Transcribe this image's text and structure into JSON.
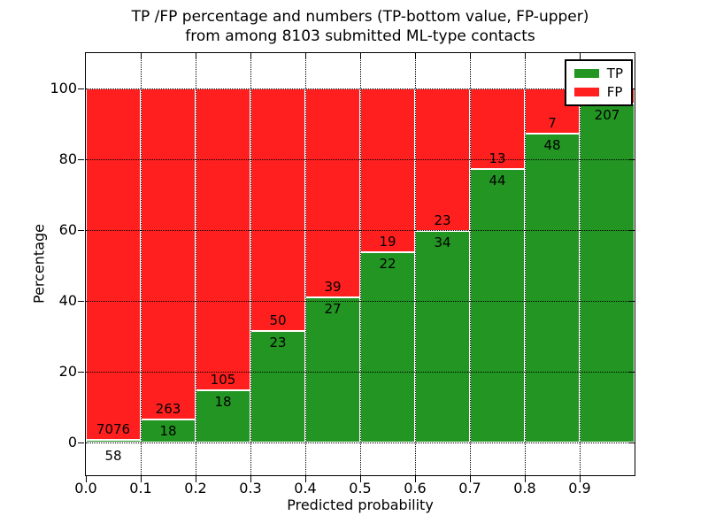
{
  "chart_data": {
    "type": "bar",
    "stacked": true,
    "title_line1": "TP /FP percentage and numbers (TP-bottom value, FP-upper)",
    "title_line2": "from among 8103 submitted ML-type contacts",
    "xlabel": "Predicted probability",
    "ylabel": "Percentage",
    "total_contacts": 8103,
    "x_tick_labels": [
      "0.0",
      "0.1",
      "0.2",
      "0.3",
      "0.4",
      "0.5",
      "0.6",
      "0.7",
      "0.8",
      "0.9"
    ],
    "y_tick_values": [
      0,
      20,
      40,
      60,
      80,
      100
    ],
    "y_tick_labels": [
      "0",
      "20",
      "40",
      "60",
      "80",
      "100"
    ],
    "xlim": [
      0.0,
      1.0
    ],
    "ylim": [
      -9.25,
      110
    ],
    "bin_width": 0.1,
    "grid": true,
    "bins": [
      {
        "x_start": 0.0,
        "tp_count": 58,
        "fp_count": 7076,
        "tp_percent": 0.81,
        "fp_percent": 99.19,
        "tp_label": "58",
        "fp_label": "7076"
      },
      {
        "x_start": 0.1,
        "tp_count": 18,
        "fp_count": 263,
        "tp_percent": 6.41,
        "fp_percent": 93.59,
        "tp_label": "18",
        "fp_label": "263"
      },
      {
        "x_start": 0.2,
        "tp_count": 18,
        "fp_count": 105,
        "tp_percent": 14.63,
        "fp_percent": 85.37,
        "tp_label": "18",
        "fp_label": "105"
      },
      {
        "x_start": 0.3,
        "tp_count": 23,
        "fp_count": 50,
        "tp_percent": 31.51,
        "fp_percent": 68.49,
        "tp_label": "23",
        "fp_label": "50"
      },
      {
        "x_start": 0.4,
        "tp_count": 27,
        "fp_count": 39,
        "tp_percent": 40.91,
        "fp_percent": 59.09,
        "tp_label": "27",
        "fp_label": "39"
      },
      {
        "x_start": 0.5,
        "tp_count": 22,
        "fp_count": 19,
        "tp_percent": 53.66,
        "fp_percent": 46.34,
        "tp_label": "22",
        "fp_label": "19"
      },
      {
        "x_start": 0.6,
        "tp_count": 34,
        "fp_count": 23,
        "tp_percent": 59.65,
        "fp_percent": 40.35,
        "tp_label": "34",
        "fp_label": "23"
      },
      {
        "x_start": 0.7,
        "tp_count": 44,
        "fp_count": 13,
        "tp_percent": 77.19,
        "fp_percent": 22.81,
        "tp_label": "44",
        "fp_label": "13"
      },
      {
        "x_start": 0.8,
        "tp_count": 48,
        "fp_count": 7,
        "tp_percent": 87.27,
        "fp_percent": 12.73,
        "tp_label": "48",
        "fp_label": "7"
      },
      {
        "x_start": 0.9,
        "tp_count": 207,
        "fp_count": null,
        "tp_percent": 95.83,
        "fp_percent": 4.17,
        "tp_label": "207",
        "fp_label": ""
      }
    ],
    "series": [
      {
        "name": "TP",
        "color": "#229522",
        "counts": [
          58,
          18,
          18,
          23,
          27,
          22,
          34,
          44,
          48,
          207
        ]
      },
      {
        "name": "FP",
        "color": "#ff1f1f",
        "counts": [
          7076,
          263,
          105,
          50,
          39,
          19,
          23,
          13,
          7,
          null
        ]
      }
    ],
    "legend": {
      "position": "upper right",
      "entries": [
        {
          "label": "TP",
          "color": "#229522"
        },
        {
          "label": "FP",
          "color": "#ff1f1f"
        }
      ]
    }
  }
}
